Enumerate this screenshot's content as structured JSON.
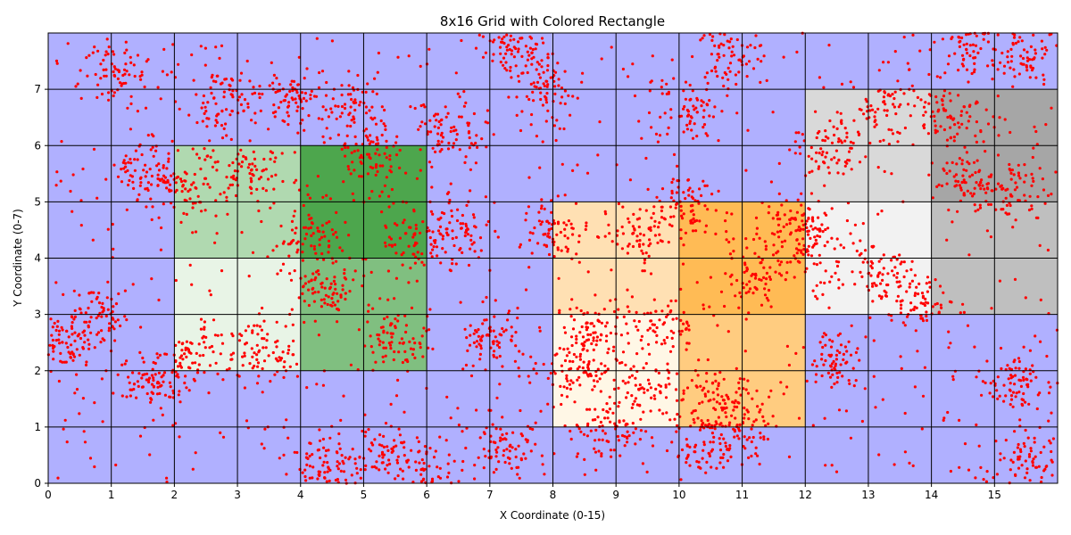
{
  "chart_data": {
    "type": "heatmap",
    "title": "8x16 Grid with Colored Rectangle",
    "xlabel": "X Coordinate (0-15)",
    "ylabel": "Y Coordinate (0-7)",
    "xlim": [
      0,
      16
    ],
    "ylim": [
      0,
      8
    ],
    "x_ticks": [
      "0",
      "1",
      "2",
      "3",
      "4",
      "5",
      "6",
      "7",
      "8",
      "9",
      "10",
      "11",
      "12",
      "13",
      "14",
      "15"
    ],
    "y_ticks": [
      "0",
      "1",
      "2",
      "3",
      "4",
      "5",
      "6",
      "7"
    ],
    "grid": true,
    "background_color": "#b0b0ff",
    "grid_color": "#000000",
    "point_color": "#ff0000",
    "point_count_estimate": 4500,
    "colored_cells": [
      {
        "x": 2,
        "y": 3,
        "color": "#e8f4e6"
      },
      {
        "x": 3,
        "y": 3,
        "color": "#e8f4e6"
      },
      {
        "x": 2,
        "y": 2,
        "color": "#e8f4e6"
      },
      {
        "x": 3,
        "y": 2,
        "color": "#e8f4e6"
      },
      {
        "x": 2,
        "y": 5,
        "color": "#b0d9b0"
      },
      {
        "x": 3,
        "y": 5,
        "color": "#b0d9b0"
      },
      {
        "x": 2,
        "y": 4,
        "color": "#b0d9b0"
      },
      {
        "x": 3,
        "y": 4,
        "color": "#b0d9b0"
      },
      {
        "x": 4,
        "y": 5,
        "color": "#4da64d"
      },
      {
        "x": 5,
        "y": 5,
        "color": "#4da64d"
      },
      {
        "x": 4,
        "y": 4,
        "color": "#4da64d"
      },
      {
        "x": 5,
        "y": 4,
        "color": "#4da64d"
      },
      {
        "x": 4,
        "y": 3,
        "color": "#80bf80"
      },
      {
        "x": 5,
        "y": 3,
        "color": "#80bf80"
      },
      {
        "x": 4,
        "y": 2,
        "color": "#80bf80"
      },
      {
        "x": 5,
        "y": 2,
        "color": "#80bf80"
      },
      {
        "x": 8,
        "y": 2,
        "color": "#fff7e6"
      },
      {
        "x": 9,
        "y": 2,
        "color": "#fff7e6"
      },
      {
        "x": 8,
        "y": 1,
        "color": "#fff7e6"
      },
      {
        "x": 9,
        "y": 1,
        "color": "#fff7e6"
      },
      {
        "x": 8,
        "y": 4,
        "color": "#ffe0b3"
      },
      {
        "x": 9,
        "y": 4,
        "color": "#ffe0b3"
      },
      {
        "x": 8,
        "y": 3,
        "color": "#ffe0b3"
      },
      {
        "x": 9,
        "y": 3,
        "color": "#ffe0b3"
      },
      {
        "x": 10,
        "y": 4,
        "color": "#ffbb55"
      },
      {
        "x": 11,
        "y": 4,
        "color": "#ffbb55"
      },
      {
        "x": 10,
        "y": 3,
        "color": "#ffbb55"
      },
      {
        "x": 11,
        "y": 3,
        "color": "#ffbb55"
      },
      {
        "x": 10,
        "y": 2,
        "color": "#ffcc80"
      },
      {
        "x": 11,
        "y": 2,
        "color": "#ffcc80"
      },
      {
        "x": 10,
        "y": 1,
        "color": "#ffcc80"
      },
      {
        "x": 11,
        "y": 1,
        "color": "#ffcc80"
      },
      {
        "x": 12,
        "y": 6,
        "color": "#d9d9d9"
      },
      {
        "x": 13,
        "y": 6,
        "color": "#d9d9d9"
      },
      {
        "x": 12,
        "y": 5,
        "color": "#d9d9d9"
      },
      {
        "x": 13,
        "y": 5,
        "color": "#d9d9d9"
      },
      {
        "x": 12,
        "y": 4,
        "color": "#f2f2f2"
      },
      {
        "x": 13,
        "y": 4,
        "color": "#f2f2f2"
      },
      {
        "x": 12,
        "y": 3,
        "color": "#f2f2f2"
      },
      {
        "x": 13,
        "y": 3,
        "color": "#f2f2f2"
      },
      {
        "x": 14,
        "y": 6,
        "color": "#a6a6a6"
      },
      {
        "x": 15,
        "y": 6,
        "color": "#a6a6a6"
      },
      {
        "x": 14,
        "y": 5,
        "color": "#a6a6a6"
      },
      {
        "x": 15,
        "y": 5,
        "color": "#a6a6a6"
      },
      {
        "x": 14,
        "y": 4,
        "color": "#bfbfbf"
      },
      {
        "x": 15,
        "y": 4,
        "color": "#bfbfbf"
      },
      {
        "x": 14,
        "y": 3,
        "color": "#bfbfbf"
      },
      {
        "x": 15,
        "y": 3,
        "color": "#bfbfbf"
      }
    ],
    "cluster_centers": [
      [
        0.3,
        2.5
      ],
      [
        0.8,
        3.0
      ],
      [
        1.0,
        7.3
      ],
      [
        1.6,
        1.8
      ],
      [
        1.5,
        5.5
      ],
      [
        2.2,
        5.2
      ],
      [
        2.3,
        2.2
      ],
      [
        2.8,
        6.8
      ],
      [
        3.2,
        5.5
      ],
      [
        3.4,
        2.3
      ],
      [
        3.8,
        6.9
      ],
      [
        4.1,
        4.3
      ],
      [
        4.4,
        3.5
      ],
      [
        4.4,
        0.3
      ],
      [
        4.8,
        6.6
      ],
      [
        5.2,
        5.8
      ],
      [
        5.2,
        0.5
      ],
      [
        5.5,
        2.5
      ],
      [
        5.8,
        4.3
      ],
      [
        5.9,
        0.2
      ],
      [
        6.3,
        6.3
      ],
      [
        6.5,
        4.5
      ],
      [
        7.0,
        2.5
      ],
      [
        7.2,
        0.6
      ],
      [
        7.3,
        7.8
      ],
      [
        7.8,
        7.0
      ],
      [
        8.0,
        4.5
      ],
      [
        8.3,
        2.0
      ],
      [
        8.6,
        2.7
      ],
      [
        8.8,
        0.9
      ],
      [
        9.3,
        1.7
      ],
      [
        9.4,
        4.4
      ],
      [
        9.8,
        2.8
      ],
      [
        10.1,
        6.6
      ],
      [
        10.1,
        4.9
      ],
      [
        10.4,
        0.6
      ],
      [
        10.6,
        1.5
      ],
      [
        10.8,
        7.6
      ],
      [
        11.2,
        3.7
      ],
      [
        11.0,
        1.0
      ],
      [
        11.8,
        4.6
      ],
      [
        12.1,
        4.2
      ],
      [
        12.4,
        5.9
      ],
      [
        12.5,
        2.2
      ],
      [
        13.2,
        3.7
      ],
      [
        13.4,
        6.7
      ],
      [
        13.8,
        3.2
      ],
      [
        14.4,
        6.5
      ],
      [
        14.5,
        5.4
      ],
      [
        14.6,
        7.8
      ],
      [
        15.3,
        5.2
      ],
      [
        15.4,
        1.8
      ],
      [
        15.5,
        7.6
      ],
      [
        15.6,
        0.4
      ]
    ]
  }
}
